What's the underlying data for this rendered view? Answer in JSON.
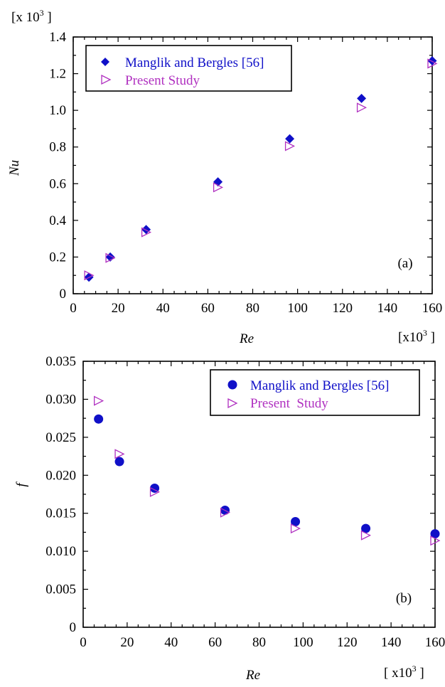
{
  "chart_data": [
    {
      "type": "scatter",
      "panel_label": "(a)",
      "xlabel": "Re",
      "ylabel": "Nu",
      "x_multiplier": "[x10³ ]",
      "x_mult_base": "[x10",
      "x_mult_exp": "3",
      "x_mult_close": " ]",
      "y_multiplier": "[x 10³ ]",
      "y_mult_base": "[x 10",
      "y_mult_exp": "3",
      "y_mult_close": " ]",
      "xlim": [
        0,
        160
      ],
      "ylim": [
        0,
        1.4
      ],
      "xticks": [
        0,
        20,
        40,
        60,
        80,
        100,
        120,
        140,
        160
      ],
      "yticks": [
        0,
        0.2,
        0.4,
        0.6,
        0.8,
        1.0,
        1.2,
        1.4
      ],
      "ytick_labels": [
        "0",
        "0.2",
        "0.4",
        "0.6",
        "0.8",
        "1.0",
        "1.2",
        "1.4"
      ],
      "legend_position": "top-left",
      "series": [
        {
          "name": "Manglik and Bergles [56]",
          "marker": "diamond",
          "color": "#1010c8",
          "x": [
            7,
            16.5,
            32.5,
            64.5,
            96.5,
            128.5,
            160
          ],
          "y": [
            0.09,
            0.2,
            0.35,
            0.61,
            0.845,
            1.065,
            1.27
          ]
        },
        {
          "name": "Present Study",
          "marker": "triangle-right",
          "color": "#b030c0",
          "x": [
            7,
            16.5,
            32.5,
            64.5,
            96.5,
            128.5,
            160
          ],
          "y": [
            0.1,
            0.195,
            0.335,
            0.58,
            0.805,
            1.015,
            1.255
          ]
        }
      ]
    },
    {
      "type": "scatter",
      "panel_label": "(b)",
      "xlabel": "Re",
      "ylabel": "f",
      "x_multiplier": "[ x10³ ]",
      "x_mult_base": "[ x10",
      "x_mult_exp": "3",
      "x_mult_close": " ]",
      "xlim": [
        0,
        160
      ],
      "ylim": [
        0,
        0.035
      ],
      "xticks": [
        0,
        20,
        40,
        60,
        80,
        100,
        120,
        140,
        160
      ],
      "yticks": [
        0,
        0.005,
        0.01,
        0.015,
        0.02,
        0.025,
        0.03,
        0.035
      ],
      "ytick_labels": [
        "0",
        "0.005",
        "0.010",
        "0.015",
        "0.020",
        "0.025",
        "0.030",
        "0.035"
      ],
      "legend_position": "top-right",
      "series": [
        {
          "name": "Manglik and Bergles [56]",
          "marker": "circle",
          "color": "#1010c8",
          "x": [
            7,
            16.5,
            32.5,
            64.5,
            96.5,
            128.5,
            160
          ],
          "y": [
            0.0274,
            0.0218,
            0.0183,
            0.0154,
            0.0139,
            0.013,
            0.0123
          ]
        },
        {
          "name": "Present  Study",
          "marker": "triangle-right",
          "color": "#b030c0",
          "x": [
            7,
            16.5,
            32.5,
            64.5,
            96.5,
            128.5,
            160
          ],
          "y": [
            0.0298,
            0.0228,
            0.0178,
            0.0151,
            0.013,
            0.0121,
            0.0114
          ]
        }
      ]
    }
  ]
}
